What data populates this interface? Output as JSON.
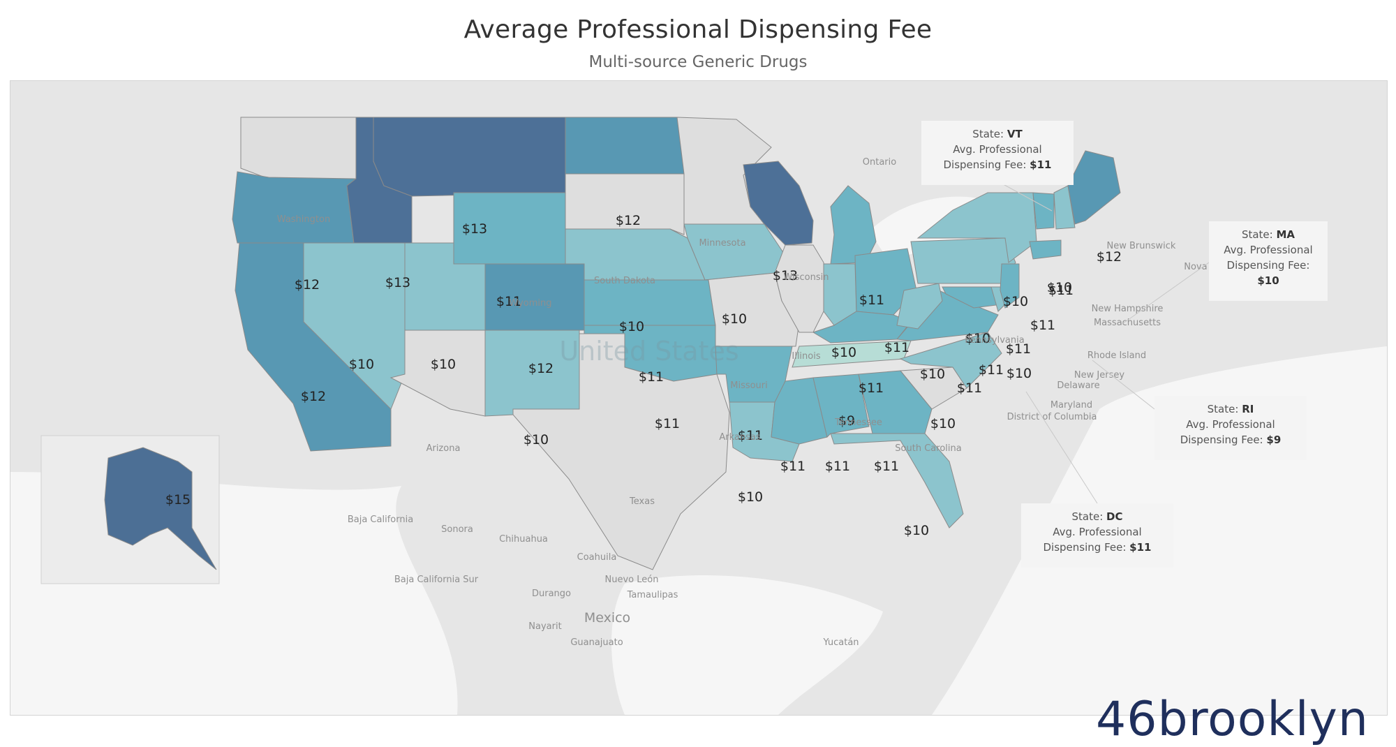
{
  "title": "Average Professional Dispensing Fee",
  "subtitle": "Multi-source Generic Drugs",
  "legend_colors": {
    "9": "#b7ddd6",
    "10": "#8cc4cd",
    "11": "#6db4c4",
    "12": "#5898b3",
    "13": "#4d7097",
    "15": "#4c6f95"
  },
  "base_labels": [
    "Ontario",
    "Washington",
    "Minnesota",
    "South Dakota",
    "Illinois",
    "Missouri",
    "Arizona",
    "Texas",
    "Baja California",
    "Sonora",
    "Chihuahua",
    "Coahuila",
    "Nuevo León",
    "Tamaulipas",
    "Durango",
    "Baja California Sur",
    "Mexico",
    "Nayarit",
    "Guanajuato",
    "Yucatán",
    "New Brunswick",
    "Nova Scotia",
    "South Carolina",
    "Pennsylvania",
    "New Hampshire",
    "Massachusetts",
    "Rhode Island",
    "New Jersey",
    "Delaware",
    "Maryland",
    "District of Columbia",
    "Tennessee",
    "Wisconsin",
    "Wyoming",
    "Arkansas",
    "United States"
  ],
  "fees": [
    {
      "state": "WA",
      "fee": null
    },
    {
      "state": "OR",
      "fee": "$12"
    },
    {
      "state": "CA",
      "fee": "$12"
    },
    {
      "state": "NV",
      "fee": "$10"
    },
    {
      "state": "ID",
      "fee": "$13"
    },
    {
      "state": "MT",
      "fee": "$13"
    },
    {
      "state": "WY",
      "fee": "$11"
    },
    {
      "state": "UT",
      "fee": "$10"
    },
    {
      "state": "CO",
      "fee": "$12"
    },
    {
      "state": "AZ",
      "fee": null
    },
    {
      "state": "NM",
      "fee": "$10"
    },
    {
      "state": "ND",
      "fee": "$12"
    },
    {
      "state": "SD",
      "fee": null
    },
    {
      "state": "NE",
      "fee": "$10"
    },
    {
      "state": "KS",
      "fee": "$11"
    },
    {
      "state": "OK",
      "fee": "$11"
    },
    {
      "state": "TX",
      "fee": null
    },
    {
      "state": "MN",
      "fee": null
    },
    {
      "state": "IA",
      "fee": "$10"
    },
    {
      "state": "MO",
      "fee": null
    },
    {
      "state": "AR",
      "fee": "$11"
    },
    {
      "state": "LA",
      "fee": "$10"
    },
    {
      "state": "WI",
      "fee": "$13"
    },
    {
      "state": "IL",
      "fee": null
    },
    {
      "state": "MI",
      "fee": "$11"
    },
    {
      "state": "IN",
      "fee": "$10"
    },
    {
      "state": "OH",
      "fee": "$11"
    },
    {
      "state": "KY",
      "fee": "$11"
    },
    {
      "state": "TN",
      "fee": "$9"
    },
    {
      "state": "MS",
      "fee": "$11"
    },
    {
      "state": "AL",
      "fee": "$11"
    },
    {
      "state": "GA",
      "fee": "$11"
    },
    {
      "state": "FL",
      "fee": "$10"
    },
    {
      "state": "SC",
      "fee": null
    },
    {
      "state": "NC",
      "fee": "$10"
    },
    {
      "state": "VA",
      "fee": "$11"
    },
    {
      "state": "WV",
      "fee": "$10"
    },
    {
      "state": "PA",
      "fee": "$10"
    },
    {
      "state": "NY",
      "fee": "$10"
    },
    {
      "state": "MD",
      "fee": "$11"
    },
    {
      "state": "DE",
      "fee": "$10"
    },
    {
      "state": "NJ",
      "fee": "$11"
    },
    {
      "state": "CT",
      "fee": "$11"
    },
    {
      "state": "VT",
      "fee": "$11"
    },
    {
      "state": "NH",
      "fee": "$10"
    },
    {
      "state": "ME",
      "fee": "$12"
    },
    {
      "state": "AK",
      "fee": "$15"
    }
  ],
  "tooltips": {
    "vt": {
      "state_label": "State:",
      "state": "VT",
      "line2": "Avg. Professional",
      "fee_label": "Dispensing Fee:",
      "fee": "$11"
    },
    "ma": {
      "state_label": "State:",
      "state": "MA",
      "line2": "Avg. Professional",
      "fee_label": "Dispensing Fee:",
      "fee": "$10"
    },
    "ri": {
      "state_label": "State:",
      "state": "RI",
      "line2": "Avg. Professional",
      "fee_label": "Dispensing Fee:",
      "fee": "$9"
    },
    "dc": {
      "state_label": "State:",
      "state": "DC",
      "line2": "Avg. Professional",
      "fee_label": "Dispensing Fee:",
      "fee": "$11"
    }
  },
  "logo": "46brooklyn"
}
